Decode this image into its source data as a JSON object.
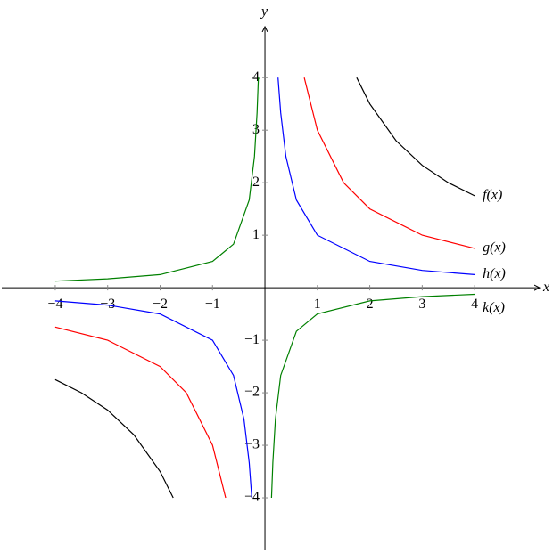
{
  "chart_data": {
    "type": "line",
    "x_label": "x",
    "y_label": "y",
    "xlim": [
      -5.02,
      5.24
    ],
    "ylim": [
      -5,
      4.97
    ],
    "xticks": [
      {
        "value": -4,
        "label": "−4"
      },
      {
        "value": -3,
        "label": "−3"
      },
      {
        "value": -2,
        "label": "−2"
      },
      {
        "value": -1,
        "label": "−1"
      },
      1,
      2,
      3,
      4
    ],
    "yticks": [
      {
        "value": -4,
        "label": "−4"
      },
      {
        "value": -3,
        "label": "−3"
      },
      {
        "value": -2,
        "label": "−2"
      },
      {
        "value": -1,
        "label": "−1"
      },
      1,
      2,
      3,
      4
    ],
    "series": [
      {
        "name": "f(x)",
        "color": "#000000",
        "x": [
          -4,
          -3.5,
          -3,
          -2.5,
          -2,
          -1.75,
          0,
          1.75,
          2,
          2.5,
          3,
          3.5,
          4
        ],
        "values": [
          -1.75,
          -2,
          -2.33,
          -2.8,
          -3.5,
          -4,
          null,
          4,
          3.5,
          2.8,
          2.33,
          2,
          1.75
        ]
      },
      {
        "name": "g(x)",
        "color": "#ff0000",
        "x": [
          -4,
          -3,
          -2,
          -1.5,
          -1,
          -0.75,
          0,
          0.75,
          1,
          1.5,
          2,
          3,
          4
        ],
        "values": [
          -0.75,
          -1,
          -1.5,
          -2,
          -3,
          -4,
          null,
          4,
          3,
          2,
          1.5,
          1,
          0.75
        ]
      },
      {
        "name": "h(x)",
        "color": "#0000ff",
        "x": [
          -4,
          -3,
          -2,
          -1,
          -0.6,
          -0.4,
          -0.3,
          -0.25,
          0,
          0.25,
          0.3,
          0.4,
          0.6,
          1,
          2,
          3,
          4
        ],
        "values": [
          -0.25,
          -0.33,
          -0.5,
          -1,
          -1.67,
          -2.5,
          -3.33,
          -4,
          null,
          4,
          3.33,
          2.5,
          1.67,
          1,
          0.5,
          0.33,
          0.25
        ]
      },
      {
        "name": "k(x)",
        "color": "#008000",
        "x": [
          -4,
          -3,
          -2,
          -1,
          -0.6,
          -0.3,
          -0.2,
          -0.15,
          -0.125,
          0,
          0.125,
          0.15,
          0.2,
          0.3,
          0.6,
          1,
          2,
          3,
          4
        ],
        "values": [
          0.125,
          0.17,
          0.25,
          0.5,
          0.83,
          1.67,
          2.5,
          3.33,
          4,
          null,
          -4,
          -3.33,
          -2.5,
          -1.67,
          -0.83,
          -0.5,
          -0.25,
          -0.17,
          -0.125
        ]
      }
    ]
  }
}
